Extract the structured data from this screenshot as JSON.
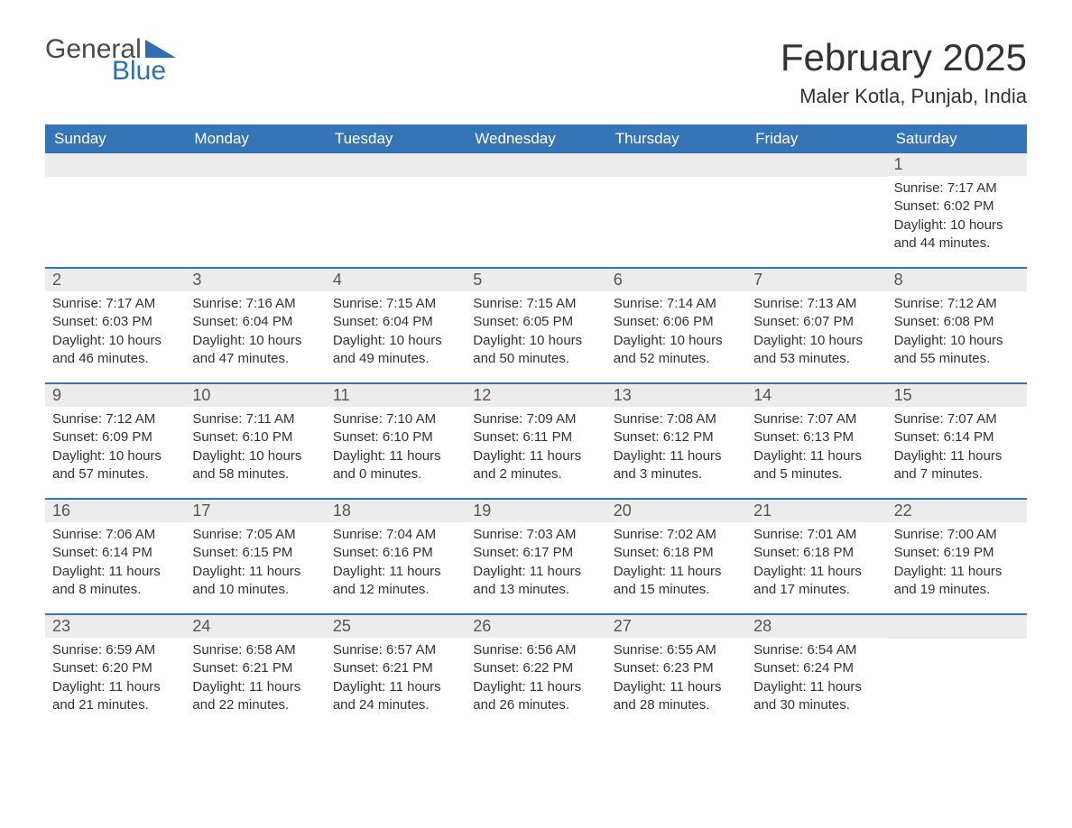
{
  "logo": {
    "general": "General",
    "blue": "Blue"
  },
  "title": "February 2025",
  "location": "Maler Kotla, Punjab, India",
  "colors": {
    "header_bg": "#3574b5",
    "header_text": "#ffffff",
    "daynum_bg": "#ececec",
    "text": "#333333",
    "logo_blue": "#2f6fb1"
  },
  "font": {
    "family": "Arial",
    "title_size": 42,
    "location_size": 22,
    "dow_size": 17,
    "daynum_size": 18,
    "body_size": 15
  },
  "dow": [
    "Sunday",
    "Monday",
    "Tuesday",
    "Wednesday",
    "Thursday",
    "Friday",
    "Saturday"
  ],
  "weeks": [
    [
      null,
      null,
      null,
      null,
      null,
      null,
      {
        "n": "1",
        "sr": "7:17 AM",
        "ss": "6:02 PM",
        "dl": "10 hours and 44 minutes."
      }
    ],
    [
      {
        "n": "2",
        "sr": "7:17 AM",
        "ss": "6:03 PM",
        "dl": "10 hours and 46 minutes."
      },
      {
        "n": "3",
        "sr": "7:16 AM",
        "ss": "6:04 PM",
        "dl": "10 hours and 47 minutes."
      },
      {
        "n": "4",
        "sr": "7:15 AM",
        "ss": "6:04 PM",
        "dl": "10 hours and 49 minutes."
      },
      {
        "n": "5",
        "sr": "7:15 AM",
        "ss": "6:05 PM",
        "dl": "10 hours and 50 minutes."
      },
      {
        "n": "6",
        "sr": "7:14 AM",
        "ss": "6:06 PM",
        "dl": "10 hours and 52 minutes."
      },
      {
        "n": "7",
        "sr": "7:13 AM",
        "ss": "6:07 PM",
        "dl": "10 hours and 53 minutes."
      },
      {
        "n": "8",
        "sr": "7:12 AM",
        "ss": "6:08 PM",
        "dl": "10 hours and 55 minutes."
      }
    ],
    [
      {
        "n": "9",
        "sr": "7:12 AM",
        "ss": "6:09 PM",
        "dl": "10 hours and 57 minutes."
      },
      {
        "n": "10",
        "sr": "7:11 AM",
        "ss": "6:10 PM",
        "dl": "10 hours and 58 minutes."
      },
      {
        "n": "11",
        "sr": "7:10 AM",
        "ss": "6:10 PM",
        "dl": "11 hours and 0 minutes."
      },
      {
        "n": "12",
        "sr": "7:09 AM",
        "ss": "6:11 PM",
        "dl": "11 hours and 2 minutes."
      },
      {
        "n": "13",
        "sr": "7:08 AM",
        "ss": "6:12 PM",
        "dl": "11 hours and 3 minutes."
      },
      {
        "n": "14",
        "sr": "7:07 AM",
        "ss": "6:13 PM",
        "dl": "11 hours and 5 minutes."
      },
      {
        "n": "15",
        "sr": "7:07 AM",
        "ss": "6:14 PM",
        "dl": "11 hours and 7 minutes."
      }
    ],
    [
      {
        "n": "16",
        "sr": "7:06 AM",
        "ss": "6:14 PM",
        "dl": "11 hours and 8 minutes."
      },
      {
        "n": "17",
        "sr": "7:05 AM",
        "ss": "6:15 PM",
        "dl": "11 hours and 10 minutes."
      },
      {
        "n": "18",
        "sr": "7:04 AM",
        "ss": "6:16 PM",
        "dl": "11 hours and 12 minutes."
      },
      {
        "n": "19",
        "sr": "7:03 AM",
        "ss": "6:17 PM",
        "dl": "11 hours and 13 minutes."
      },
      {
        "n": "20",
        "sr": "7:02 AM",
        "ss": "6:18 PM",
        "dl": "11 hours and 15 minutes."
      },
      {
        "n": "21",
        "sr": "7:01 AM",
        "ss": "6:18 PM",
        "dl": "11 hours and 17 minutes."
      },
      {
        "n": "22",
        "sr": "7:00 AM",
        "ss": "6:19 PM",
        "dl": "11 hours and 19 minutes."
      }
    ],
    [
      {
        "n": "23",
        "sr": "6:59 AM",
        "ss": "6:20 PM",
        "dl": "11 hours and 21 minutes."
      },
      {
        "n": "24",
        "sr": "6:58 AM",
        "ss": "6:21 PM",
        "dl": "11 hours and 22 minutes."
      },
      {
        "n": "25",
        "sr": "6:57 AM",
        "ss": "6:21 PM",
        "dl": "11 hours and 24 minutes."
      },
      {
        "n": "26",
        "sr": "6:56 AM",
        "ss": "6:22 PM",
        "dl": "11 hours and 26 minutes."
      },
      {
        "n": "27",
        "sr": "6:55 AM",
        "ss": "6:23 PM",
        "dl": "11 hours and 28 minutes."
      },
      {
        "n": "28",
        "sr": "6:54 AM",
        "ss": "6:24 PM",
        "dl": "11 hours and 30 minutes."
      },
      null
    ]
  ],
  "labels": {
    "sunrise": "Sunrise: ",
    "sunset": "Sunset: ",
    "daylight": "Daylight: "
  }
}
